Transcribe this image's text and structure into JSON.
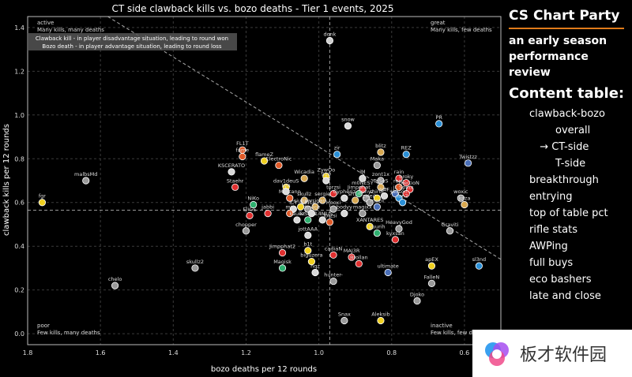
{
  "chart_data": {
    "type": "scatter",
    "title": "CT side clawback kills vs. bozo deaths - Tier 1 events, 2025",
    "xlabel": "bozo deaths per 12 rounds",
    "ylabel": "clawback kills per 12 rounds",
    "xlim": [
      1.8,
      0.5
    ],
    "ylim": [
      -0.05,
      1.45
    ],
    "x_ticks": [
      "1.8",
      "1.6",
      "1.4",
      "1.2",
      "1.0",
      "0.8",
      "0.6"
    ],
    "y_ticks": [
      "0.0",
      "0.2",
      "0.4",
      "0.6",
      "0.8",
      "1.0",
      "1.2",
      "1.4"
    ],
    "x_reverse": true,
    "grid": true,
    "reference_lines": {
      "x": 0.97,
      "y": 0.565
    },
    "diagonal": {
      "from": [
        1.58,
        1.45
      ],
      "to": [
        0.5,
        0.34
      ]
    },
    "legend_box": [
      "Clawback kill - in player disadvantage situation, leading to round won",
      "Bozo death - in player advantage situation, leading to round loss"
    ],
    "quadrants": {
      "top_left": {
        "title": "active",
        "desc": "Many kills, many deaths"
      },
      "top_right": {
        "title": "great",
        "desc": "Many kills, few deaths"
      },
      "bottom_left": {
        "title": "poor",
        "desc": "Few kills, many deaths"
      },
      "bottom_right": {
        "title": "inactive",
        "desc": "Few kills, few deaths"
      }
    },
    "points": [
      {
        "label": "donk",
        "x": 0.97,
        "y": 1.34,
        "color": "#cfcfcf"
      },
      {
        "label": "PR",
        "x": 0.67,
        "y": 0.96,
        "color": "#2a8fd6"
      },
      {
        "label": "snow",
        "x": 0.92,
        "y": 0.95,
        "color": "#d8d8d8"
      },
      {
        "label": "Twistzz",
        "x": 0.59,
        "y": 0.78,
        "color": "#4a6fb8"
      },
      {
        "label": "blitz",
        "x": 0.83,
        "y": 0.83,
        "color": "#d8a850"
      },
      {
        "label": "REZ",
        "x": 0.76,
        "y": 0.82,
        "color": "#2a8fd6"
      },
      {
        "label": "zir",
        "x": 0.95,
        "y": 0.82,
        "color": "#2a8fd6"
      },
      {
        "label": "FL1T",
        "x": 1.21,
        "y": 0.84,
        "color": "#e05a28"
      },
      {
        "label": "fame",
        "x": 1.21,
        "y": 0.81,
        "color": "#e05a28"
      },
      {
        "label": "flameZ",
        "x": 1.15,
        "y": 0.79,
        "color": "#f0d020"
      },
      {
        "label": "ElectroNic",
        "x": 1.11,
        "y": 0.77,
        "color": "#e05a28"
      },
      {
        "label": "KSCERATO",
        "x": 1.24,
        "y": 0.74,
        "color": "#d8d8d8"
      },
      {
        "label": "Maka",
        "x": 0.84,
        "y": 0.77,
        "color": "#9a9a9a"
      },
      {
        "label": "malbsMd",
        "x": 1.64,
        "y": 0.7,
        "color": "#9a9a9a"
      },
      {
        "label": "Wicadia",
        "x": 1.04,
        "y": 0.71,
        "color": "#d8a850"
      },
      {
        "label": "ZywOo",
        "x": 0.98,
        "y": 0.72,
        "color": "#f0d020"
      },
      {
        "label": "910",
        "x": 0.98,
        "y": 0.7,
        "color": "#d8d8d8"
      },
      {
        "label": "iM",
        "x": 0.88,
        "y": 0.71,
        "color": "#d8d8d8"
      },
      {
        "label": "zont1x",
        "x": 0.83,
        "y": 0.7,
        "color": "#9a9a9a"
      },
      {
        "label": "rain",
        "x": 0.78,
        "y": 0.71,
        "color": "#e03030"
      },
      {
        "label": "broky",
        "x": 0.76,
        "y": 0.69,
        "color": "#e03030"
      },
      {
        "label": "Staehr",
        "x": 1.23,
        "y": 0.67,
        "color": "#e03030"
      },
      {
        "label": "dav1deuS",
        "x": 1.09,
        "y": 0.67,
        "color": "#f0d020"
      },
      {
        "label": "m0NESY",
        "x": 0.88,
        "y": 0.66,
        "color": "#e03030"
      },
      {
        "label": "TeSeS",
        "x": 0.83,
        "y": 0.67,
        "color": "#d8a850"
      },
      {
        "label": "ropz",
        "x": 0.78,
        "y": 0.67,
        "color": "#e05a28"
      },
      {
        "label": "XertioN",
        "x": 0.75,
        "y": 0.66,
        "color": "#e03030"
      },
      {
        "label": "Spinx",
        "x": 0.76,
        "y": 0.64,
        "color": "#e03030"
      },
      {
        "label": "torzsi",
        "x": 0.96,
        "y": 0.64,
        "color": "#e03030"
      },
      {
        "label": "Jimpphat",
        "x": 0.89,
        "y": 0.64,
        "color": "#2fb070"
      },
      {
        "label": "NAF",
        "x": 0.82,
        "y": 0.63,
        "color": "#d8d8d8"
      },
      {
        "label": "jL",
        "x": 0.79,
        "y": 0.64,
        "color": "#4a6fb8"
      },
      {
        "label": "Lyn",
        "x": 1.09,
        "y": 0.65,
        "color": "#d8d8d8"
      },
      {
        "label": "Mercano",
        "x": 1.08,
        "y": 0.62,
        "color": "#e05a28"
      },
      {
        "label": "skullz",
        "x": 1.04,
        "y": 0.61,
        "color": "#d8a850"
      },
      {
        "label": "sergie",
        "x": 0.99,
        "y": 0.61,
        "color": "#d8a850"
      },
      {
        "label": "Cypheriz",
        "x": 0.93,
        "y": 0.62,
        "color": "#d8d8d8"
      },
      {
        "label": "sh1ro",
        "x": 0.9,
        "y": 0.61,
        "color": "#d8a850"
      },
      {
        "label": "sunyz",
        "x": 0.87,
        "y": 0.62,
        "color": "#9a9a9a"
      },
      {
        "label": "zweih",
        "x": 0.86,
        "y": 0.6,
        "color": "#9a9a9a"
      },
      {
        "label": "shiroc",
        "x": 0.84,
        "y": 0.62,
        "color": "#f0d020"
      },
      {
        "label": "Jauson",
        "x": 0.78,
        "y": 0.62,
        "color": "#2a8fd6"
      },
      {
        "label": "lan2",
        "x": 0.77,
        "y": 0.6,
        "color": "#2a8fd6"
      },
      {
        "label": "woxic",
        "x": 0.61,
        "y": 0.62,
        "color": "#9a9a9a"
      },
      {
        "label": "kaza",
        "x": 0.6,
        "y": 0.59,
        "color": "#d8a850"
      },
      {
        "label": "fgr",
        "x": 1.76,
        "y": 0.6,
        "color": "#f0d020"
      },
      {
        "label": "NiKo",
        "x": 1.18,
        "y": 0.59,
        "color": "#2fb070"
      },
      {
        "label": "iCY",
        "x": 1.07,
        "y": 0.57,
        "color": "#d8d8d8"
      },
      {
        "label": "siuhy",
        "x": 1.05,
        "y": 0.58,
        "color": "#f0d020"
      },
      {
        "label": "Ax1Le",
        "x": 1.03,
        "y": 0.57,
        "color": "#9a9a9a"
      },
      {
        "label": "karrigan",
        "x": 1.01,
        "y": 0.58,
        "color": "#d8a850"
      },
      {
        "label": "Hooxi",
        "x": 0.96,
        "y": 0.57,
        "color": "#9a9a9a"
      },
      {
        "label": "mezii",
        "x": 0.84,
        "y": 0.58,
        "color": "#4a6fb8"
      },
      {
        "label": "device",
        "x": 1.02,
        "y": 0.55,
        "color": "#d8d8d8"
      },
      {
        "label": "EliGE",
        "x": 1.19,
        "y": 0.54,
        "color": "#e03030"
      },
      {
        "label": "jabbi",
        "x": 1.14,
        "y": 0.55,
        "color": "#e03030"
      },
      {
        "label": "mir",
        "x": 1.08,
        "y": 0.55,
        "color": "#e05a28"
      },
      {
        "label": "bodyy",
        "x": 0.93,
        "y": 0.55,
        "color": "#d8d8d8"
      },
      {
        "label": "magixx",
        "x": 0.88,
        "y": 0.55,
        "color": "#9a9a9a"
      },
      {
        "label": "kauez",
        "x": 1.06,
        "y": 0.52,
        "color": "#d8d8d8"
      },
      {
        "label": "TeSeS2",
        "x": 1.03,
        "y": 0.52,
        "color": "#2fb070"
      },
      {
        "label": "FL4MUS",
        "x": 0.99,
        "y": 0.52,
        "color": "#d8d8d8"
      },
      {
        "label": "Torzsi",
        "x": 0.97,
        "y": 0.51,
        "color": "#e05a28"
      },
      {
        "label": "chopper",
        "x": 1.2,
        "y": 0.47,
        "color": "#9a9a9a"
      },
      {
        "label": "XANTARES",
        "x": 0.86,
        "y": 0.49,
        "color": "#f0d020"
      },
      {
        "label": "HeavyGod",
        "x": 0.78,
        "y": 0.48,
        "color": "#9a9a9a"
      },
      {
        "label": "yuurih",
        "x": 0.84,
        "y": 0.46,
        "color": "#2fb070"
      },
      {
        "label": "Graviti",
        "x": 0.64,
        "y": 0.47,
        "color": "#9a9a9a"
      },
      {
        "label": "jottAAA",
        "x": 1.03,
        "y": 0.45,
        "color": "#d8d8d8"
      },
      {
        "label": "kyxsan",
        "x": 0.79,
        "y": 0.43,
        "color": "#e03030"
      },
      {
        "label": "b1t",
        "x": 1.03,
        "y": 0.38,
        "color": "#f0d020"
      },
      {
        "label": "Jimpphat2",
        "x": 1.1,
        "y": 0.37,
        "color": "#e03030"
      },
      {
        "label": "cadiaN",
        "x": 0.96,
        "y": 0.36,
        "color": "#e03030"
      },
      {
        "label": "MAJ3R",
        "x": 0.91,
        "y": 0.35,
        "color": "#e03030"
      },
      {
        "label": "Brollan",
        "x": 0.89,
        "y": 0.32,
        "color": "#e03030"
      },
      {
        "label": "biguzera",
        "x": 1.02,
        "y": 0.33,
        "color": "#f0d020"
      },
      {
        "label": "Magisk",
        "x": 1.1,
        "y": 0.3,
        "color": "#2fb070"
      },
      {
        "label": "ultimate",
        "x": 0.81,
        "y": 0.28,
        "color": "#4a6fb8"
      },
      {
        "label": "apEX",
        "x": 0.69,
        "y": 0.31,
        "color": "#f0d020"
      },
      {
        "label": "sl3nd",
        "x": 0.56,
        "y": 0.31,
        "color": "#2a8fd6"
      },
      {
        "label": "skullz2",
        "x": 1.34,
        "y": 0.3,
        "color": "#9a9a9a"
      },
      {
        "label": "nqz",
        "x": 1.01,
        "y": 0.28,
        "color": "#d8d8d8"
      },
      {
        "label": "hunter-",
        "x": 0.96,
        "y": 0.24,
        "color": "#9a9a9a"
      },
      {
        "label": "FalleN",
        "x": 0.69,
        "y": 0.23,
        "color": "#9a9a9a"
      },
      {
        "label": "chelo",
        "x": 1.56,
        "y": 0.22,
        "color": "#9a9a9a"
      },
      {
        "label": "Djoko",
        "x": 0.73,
        "y": 0.15,
        "color": "#9a9a9a"
      },
      {
        "label": "Snax",
        "x": 0.93,
        "y": 0.06,
        "color": "#9a9a9a"
      },
      {
        "label": "Aleksib",
        "x": 0.83,
        "y": 0.06,
        "color": "#f0d020"
      }
    ]
  },
  "sidebar": {
    "brand": "CS Chart Party",
    "subtitle": "an early season performance review",
    "toc_heading": "Content table:",
    "items": [
      {
        "label": "clawback-bozo",
        "indent": 1
      },
      {
        "label": "overall",
        "indent": 2
      },
      {
        "label": "→ CT-side",
        "indent": 1.4
      },
      {
        "label": "T-side",
        "indent": 2
      },
      {
        "label": "breakthrough",
        "indent": 1
      },
      {
        "label": "entrying",
        "indent": 1
      },
      {
        "label": "top of table pct",
        "indent": 1
      },
      {
        "label": "rifle stats",
        "indent": 1
      },
      {
        "label": "AWPing",
        "indent": 1
      },
      {
        "label": "full buys",
        "indent": 1
      },
      {
        "label": "eco bashers",
        "indent": 1
      },
      {
        "label": "late and close",
        "indent": 1
      }
    ]
  },
  "watermark": {
    "text": "板才软件园"
  }
}
